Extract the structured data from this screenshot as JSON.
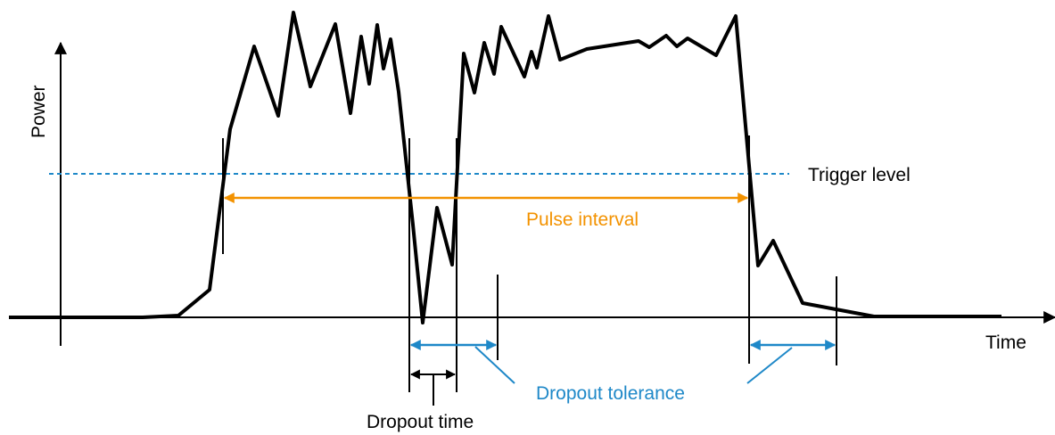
{
  "labels": {
    "power": "Power",
    "time": "Time",
    "trigger_level": "Trigger level",
    "pulse_interval": "Pulse interval",
    "dropout_tolerance": "Dropout tolerance",
    "dropout_time": "Dropout time"
  },
  "colors": {
    "signal": "#000000",
    "trigger": "#1e88c8",
    "pulse_interval": "#f39200",
    "tolerance": "#1e88c8",
    "axes": "#000000"
  }
}
